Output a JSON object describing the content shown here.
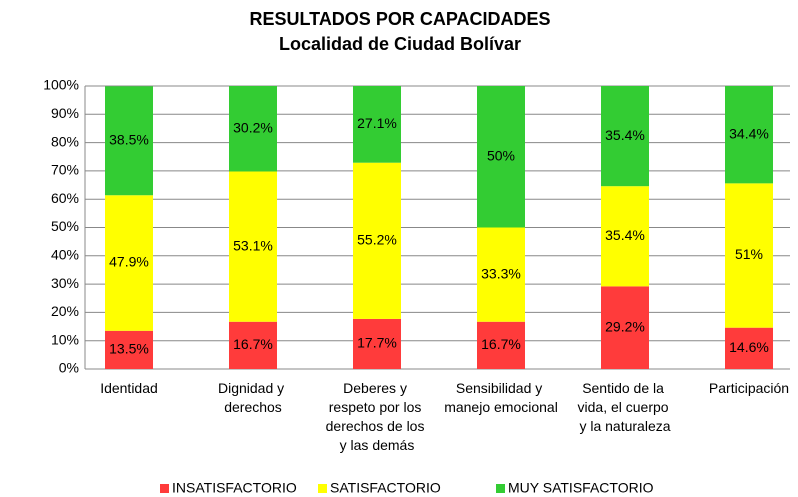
{
  "chart_data": {
    "type": "stacked_bar",
    "title": "RESULTADOS POR CAPACIDADES",
    "subtitle": "Localidad de Ciudad Bolívar",
    "categories": [
      "Identidad",
      "Dignidad y derechos",
      "Deberes y respeto por los derechos de los y las demás",
      "Sensibilidad y manejo emocional",
      "Sentido de la vida, el cuerpo y la naturaleza",
      "Participación"
    ],
    "series": [
      {
        "name": "INSATISFACTORIO",
        "color": "#ff3b3b",
        "values": [
          13.5,
          16.7,
          17.7,
          16.7,
          29.2,
          14.6
        ],
        "value_labels": [
          "13.5%",
          "16.7%",
          "17.7%",
          "16.7%",
          "29.2%",
          "14.6%"
        ]
      },
      {
        "name": "SATISFACTORIO",
        "color": "#ffff00",
        "values": [
          47.9,
          53.1,
          55.2,
          33.3,
          35.4,
          51
        ],
        "value_labels": [
          "47.9%",
          "53.1%",
          "55.2%",
          "33.3%",
          "35.4%",
          "51%"
        ]
      },
      {
        "name": "MUY SATISFACTORIO",
        "color": "#33cc33",
        "values": [
          38.5,
          30.2,
          27.1,
          50,
          35.4,
          34.4
        ],
        "value_labels": [
          "38.5%",
          "30.2%",
          "27.1%",
          "50%",
          "35.4%",
          "34.4%"
        ]
      }
    ],
    "ylim": [
      0,
      100
    ],
    "yticks": [
      {
        "value": 0,
        "label": "0%"
      },
      {
        "value": 10,
        "label": "10%"
      },
      {
        "value": 20,
        "label": "20%"
      },
      {
        "value": 30,
        "label": "30%"
      },
      {
        "value": 40,
        "label": "40%"
      },
      {
        "value": 50,
        "label": "50%"
      },
      {
        "value": 60,
        "label": "60%"
      },
      {
        "value": 70,
        "label": "70%"
      },
      {
        "value": 80,
        "label": "80%"
      },
      {
        "value": 90,
        "label": "90%"
      },
      {
        "value": 100,
        "label": "100%"
      }
    ],
    "grid": true,
    "legend": "bottom"
  }
}
